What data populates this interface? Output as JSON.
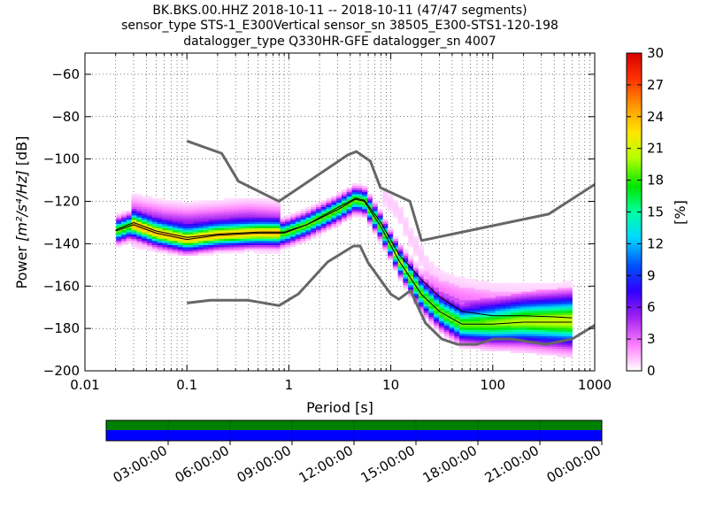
{
  "title_lines": [
    "BK.BKS.00.HHZ   2018-10-11 -- 2018-10-11  (47/47 segments)",
    "sensor_type STS-1_E300Vertical sensor_sn 38505_E300-STS1-120-198",
    "datalogger_type Q330HR-GFE datalogger_sn 4007"
  ],
  "chart_data": {
    "type": "heatmap",
    "x_scale": "log",
    "xlim": [
      0.01,
      1000
    ],
    "ylim": [
      -200,
      -50
    ],
    "xlabel": "Period [s]",
    "ylabel_prefix": "Power ",
    "ylabel_units": "[m²/s⁴/Hz]",
    "ylabel_suffix": " [dB]",
    "x_ticks": [
      {
        "value": 0.01,
        "label": "0.01"
      },
      {
        "value": 0.1,
        "label": "0.1"
      },
      {
        "value": 1,
        "label": "1"
      },
      {
        "value": 10,
        "label": "10"
      },
      {
        "value": 100,
        "label": "100"
      },
      {
        "value": 1000,
        "label": "1000"
      }
    ],
    "y_ticks": [
      {
        "value": -60,
        "label": "−60"
      },
      {
        "value": -80,
        "label": "−80"
      },
      {
        "value": -100,
        "label": "−100"
      },
      {
        "value": -120,
        "label": "−120"
      },
      {
        "value": -140,
        "label": "−140"
      },
      {
        "value": -160,
        "label": "−160"
      },
      {
        "value": -180,
        "label": "−180"
      },
      {
        "value": -200,
        "label": "−200"
      }
    ],
    "grid": "dotted",
    "colorbar": {
      "label": "[%]",
      "range": [
        0,
        30
      ],
      "ticks": [
        {
          "value": 0,
          "label": "0"
        },
        {
          "value": 3,
          "label": "3"
        },
        {
          "value": 6,
          "label": "6"
        },
        {
          "value": 9,
          "label": "9"
        },
        {
          "value": 12,
          "label": "12"
        },
        {
          "value": 15,
          "label": "15"
        },
        {
          "value": 18,
          "label": "18"
        },
        {
          "value": 21,
          "label": "21"
        },
        {
          "value": 24,
          "label": "24"
        },
        {
          "value": 27,
          "label": "27"
        },
        {
          "value": 30,
          "label": "30"
        }
      ]
    },
    "noise_models": {
      "high": {
        "x": [
          0.1,
          0.22,
          0.32,
          0.8,
          3.8,
          4.6,
          6.3,
          7.9,
          15.4,
          20,
          354,
          1000
        ],
        "y": [
          -91.5,
          -97.4,
          -110.5,
          -120,
          -98,
          -96.5,
          -101,
          -113.5,
          -120,
          -138.5,
          -126,
          -112
        ]
      },
      "low": {
        "x": [
          0.1,
          0.17,
          0.4,
          0.8,
          1.24,
          2.4,
          4.3,
          5,
          6,
          10,
          12,
          15.6,
          21.9,
          31.6,
          45,
          70,
          101,
          154,
          328,
          600,
          1000
        ],
        "y": [
          -168,
          -166.7,
          -166.7,
          -169.2,
          -163.7,
          -148.6,
          -141.1,
          -141.1,
          -149,
          -163.8,
          -166.2,
          -162.1,
          -177.5,
          -185,
          -187.5,
          -187.5,
          -185,
          -185,
          -187.5,
          -185,
          -178.5
        ]
      }
    },
    "mean_psd": {
      "x": [
        0.02,
        0.03,
        0.05,
        0.1,
        0.2,
        0.5,
        0.9,
        1.5,
        3,
        4.5,
        5.5,
        8,
        12,
        20,
        30,
        50,
        100,
        200,
        400,
        600
      ],
      "y": [
        -133.5,
        -130,
        -134,
        -137,
        -135.5,
        -134.5,
        -134.5,
        -131,
        -123,
        -118.5,
        -119.5,
        -130,
        -145,
        -157,
        -165,
        -172,
        -174,
        -174,
        -174.5,
        -175
      ]
    },
    "mode_psd": {
      "x": [
        0.02,
        0.03,
        0.05,
        0.1,
        0.2,
        0.5,
        0.9,
        1.5,
        3,
        4.5,
        5.5,
        8,
        12,
        20,
        30,
        50,
        100,
        200,
        400,
        600
      ],
      "y": [
        -134,
        -131,
        -135,
        -138,
        -136,
        -135,
        -135,
        -131,
        -124,
        -119,
        -120,
        -132,
        -148,
        -164,
        -172,
        -178,
        -178,
        -177,
        -177,
        -177
      ]
    },
    "ridges": [
      {
        "x": [
          0.02,
          0.03,
          0.05,
          0.1,
          0.2,
          0.5,
          0.9,
          1.5,
          3,
          4.5,
          5.5,
          8,
          12,
          20,
          30,
          50,
          100,
          200,
          400,
          600
        ],
        "y": [
          -134,
          -131,
          -135,
          -138,
          -136,
          -135,
          -135,
          -131,
          -124,
          -119,
          -120,
          -132,
          -148,
          -164,
          -172,
          -178,
          -178,
          -177,
          -177,
          -177
        ],
        "spread": 3,
        "pct": 19
      },
      {
        "x": [
          0.03,
          0.06,
          0.1,
          0.2,
          0.4,
          0.8
        ],
        "y": [
          -129,
          -132,
          -133,
          -132,
          -131,
          -132
        ],
        "spread": 6,
        "pct": 6
      },
      {
        "x": [
          10,
          14,
          20,
          30,
          50,
          100,
          200,
          600
        ],
        "y": [
          -140,
          -148,
          -157,
          -163,
          -167,
          -170,
          -171,
          -172
        ],
        "spread": 3,
        "pct": 2
      },
      {
        "x": [
          8,
          12,
          15,
          22,
          30,
          50,
          100,
          200,
          600
        ],
        "y": [
          -116,
          -125,
          -135,
          -150,
          -158,
          -162,
          -165,
          -166,
          -167
        ],
        "spread": 4,
        "pct": 1
      }
    ]
  },
  "time_panel": {
    "tick_labels": [
      "03:00:00",
      "06:00:00",
      "09:00:00",
      "12:00:00",
      "15:00:00",
      "18:00:00",
      "21:00:00",
      "00:00:00"
    ],
    "top_band_color": "#008000",
    "bottom_band_color": "#0000ff"
  }
}
